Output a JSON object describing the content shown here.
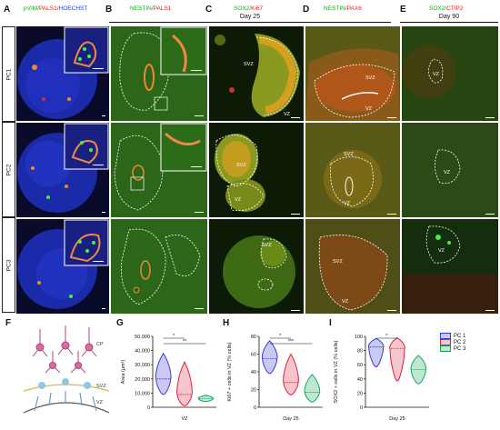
{
  "panel_letters": {
    "A": "A",
    "B": "B",
    "C": "C",
    "D": "D",
    "E": "E",
    "F": "F",
    "G": "G",
    "H": "H",
    "I": "I"
  },
  "headers": {
    "A": {
      "m1": "pVIM/",
      "m2": "PALS1/",
      "m3": "HOECHST"
    },
    "B": {
      "m1": "NESTIN/",
      "m2": "PALS1"
    },
    "C": {
      "m1": "SOX2/",
      "m2": "Ki67"
    },
    "D": {
      "m1": "NESTIN/",
      "m2": "PAX6"
    },
    "E": {
      "m1": "SOX2/",
      "m2": "CTIP2"
    }
  },
  "days": {
    "d25": "Day 25",
    "d90": "Day 90"
  },
  "rows": [
    "PC1",
    "PC2",
    "PC3"
  ],
  "zones": {
    "svz": "SVZ",
    "vz": "VZ"
  },
  "diagram_labels": {
    "cp": "CP",
    "svz": "SVZ",
    "vz": "VZ"
  },
  "colors": {
    "pc1": "#3a3ad8",
    "pc2": "#e0203a",
    "pc3": "#18a060",
    "fill1": "#c9c9f2",
    "fill2": "#f6c6cc",
    "fill3": "#bfe8d2"
  },
  "legend": [
    "PC 1",
    "PC 2",
    "PC 3"
  ],
  "chart_data": [
    {
      "panel": "G",
      "type": "violin",
      "ylabel": "Area (μm²)",
      "xlabel": "VZ",
      "ylim": [
        0,
        50000
      ],
      "yticks": [
        "0",
        "10,000",
        "20,000",
        "30,000",
        "40,000",
        "50,000"
      ],
      "series": [
        {
          "name": "PC 1",
          "range": [
            9000,
            38000
          ],
          "median": 20000
        },
        {
          "name": "PC 2",
          "range": [
            1000,
            32000
          ],
          "median": 9000
        },
        {
          "name": "PC 3",
          "range": [
            4000,
            8500
          ],
          "median": 6000
        }
      ],
      "significance": [
        "*",
        "**"
      ]
    },
    {
      "panel": "H",
      "type": "violin",
      "ylabel": "Ki67 + cells in VZ (% cells)",
      "xlabel": "Day 25",
      "ylim": [
        0,
        80
      ],
      "yticks": [
        "0",
        "20",
        "40",
        "60",
        "80"
      ],
      "series": [
        {
          "name": "PC 1",
          "range": [
            38,
            75
          ],
          "median": 55
        },
        {
          "name": "PC 2",
          "range": [
            14,
            60
          ],
          "median": 28
        },
        {
          "name": "PC 3",
          "range": [
            6,
            37
          ],
          "median": 17
        }
      ],
      "significance": [
        "*",
        "***"
      ]
    },
    {
      "panel": "I",
      "type": "violin",
      "ylabel": "SOX2 + cells in VZ (% cells)",
      "xlabel": "Day 25",
      "ylim": [
        0,
        100
      ],
      "yticks": [
        "0",
        "20",
        "40",
        "60",
        "80",
        "100"
      ],
      "series": [
        {
          "name": "PC 1",
          "range": [
            57,
            97
          ],
          "median": 85
        },
        {
          "name": "PC 2",
          "range": [
            37,
            98
          ],
          "median": 83
        },
        {
          "name": "PC 3",
          "range": [
            33,
            73
          ],
          "median": 53
        }
      ],
      "significance": [
        "*"
      ]
    }
  ]
}
